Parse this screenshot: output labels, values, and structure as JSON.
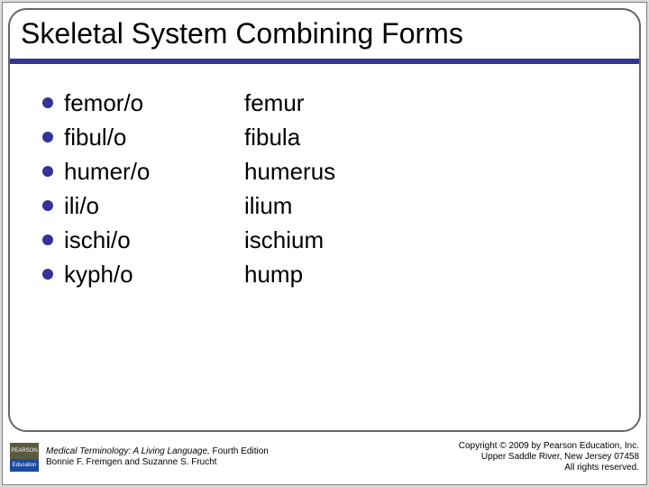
{
  "title": "Skeletal System Combining Forms",
  "rows": [
    {
      "term": "femor/o",
      "meaning": "femur"
    },
    {
      "term": "fibul/o",
      "meaning": "fibula"
    },
    {
      "term": "humer/o",
      "meaning": "humerus"
    },
    {
      "term": "ili/o",
      "meaning": "ilium"
    },
    {
      "term": "ischi/o",
      "meaning": "ischium"
    },
    {
      "term": "kyph/o",
      "meaning": "hump"
    }
  ],
  "logo": {
    "top": "PEARSON",
    "bottom": "Education"
  },
  "citation": {
    "title_italic": "Medical Terminology: A Living Language,",
    "edition": " Fourth Edition",
    "authors": "Bonnie F. Fremgen and Suzanne S. Frucht"
  },
  "copyright": {
    "line1": "Copyright © 2009 by Pearson Education, Inc.",
    "line2": "Upper Saddle River, New Jersey 07458",
    "line3": "All rights reserved."
  },
  "colors": {
    "accent": "#333399",
    "border": "#666666",
    "text": "#000000",
    "background": "#ffffff"
  }
}
